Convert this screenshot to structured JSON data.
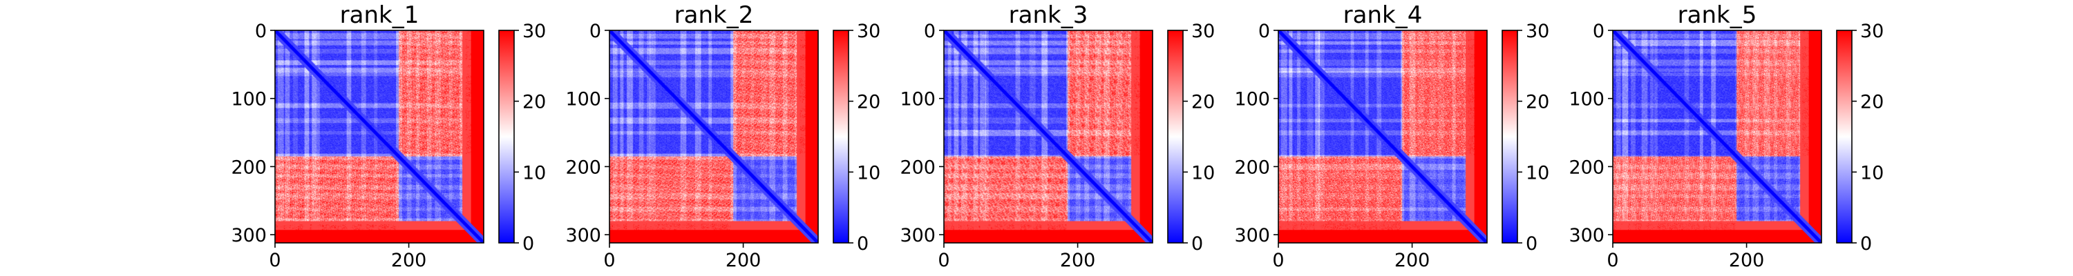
{
  "figure": {
    "background": "#ffffff"
  },
  "chart_data": [
    {
      "type": "heatmap",
      "title": "rank_1",
      "n": 312,
      "split": 185,
      "xlim": [
        0,
        312
      ],
      "ylim": [
        312,
        0
      ],
      "xticks": [
        0,
        200
      ],
      "yticks": [
        0,
        100,
        200,
        300
      ],
      "colorbar": {
        "min": 0,
        "max": 30,
        "ticks": [
          0,
          10,
          20,
          30
        ],
        "colors": [
          "#0000ff",
          "#ffffff",
          "#ff0000"
        ]
      }
    },
    {
      "type": "heatmap",
      "title": "rank_2",
      "n": 312,
      "split": 185,
      "xlim": [
        0,
        312
      ],
      "ylim": [
        312,
        0
      ],
      "xticks": [
        0,
        200
      ],
      "yticks": [
        0,
        100,
        200,
        300
      ],
      "colorbar": {
        "min": 0,
        "max": 30,
        "ticks": [
          0,
          10,
          20,
          30
        ],
        "colors": [
          "#0000ff",
          "#ffffff",
          "#ff0000"
        ]
      }
    },
    {
      "type": "heatmap",
      "title": "rank_3",
      "n": 312,
      "split": 185,
      "xlim": [
        0,
        312
      ],
      "ylim": [
        312,
        0
      ],
      "xticks": [
        0,
        200
      ],
      "yticks": [
        0,
        100,
        200,
        300
      ],
      "colorbar": {
        "min": 0,
        "max": 30,
        "ticks": [
          0,
          10,
          20,
          30
        ],
        "colors": [
          "#0000ff",
          "#ffffff",
          "#ff0000"
        ]
      }
    },
    {
      "type": "heatmap",
      "title": "rank_4",
      "n": 312,
      "split": 185,
      "xlim": [
        0,
        312
      ],
      "ylim": [
        312,
        0
      ],
      "xticks": [
        0,
        200
      ],
      "yticks": [
        0,
        100,
        200,
        300
      ],
      "colorbar": {
        "min": 0,
        "max": 30,
        "ticks": [
          0,
          10,
          20,
          30
        ],
        "colors": [
          "#0000ff",
          "#ffffff",
          "#ff0000"
        ]
      }
    },
    {
      "type": "heatmap",
      "title": "rank_5",
      "n": 312,
      "split": 185,
      "xlim": [
        0,
        312
      ],
      "ylim": [
        312,
        0
      ],
      "xticks": [
        0,
        200
      ],
      "yticks": [
        0,
        100,
        200,
        300
      ],
      "colorbar": {
        "min": 0,
        "max": 30,
        "ticks": [
          0,
          10,
          20,
          30
        ],
        "colors": [
          "#0000ff",
          "#ffffff",
          "#ff0000"
        ]
      }
    }
  ]
}
